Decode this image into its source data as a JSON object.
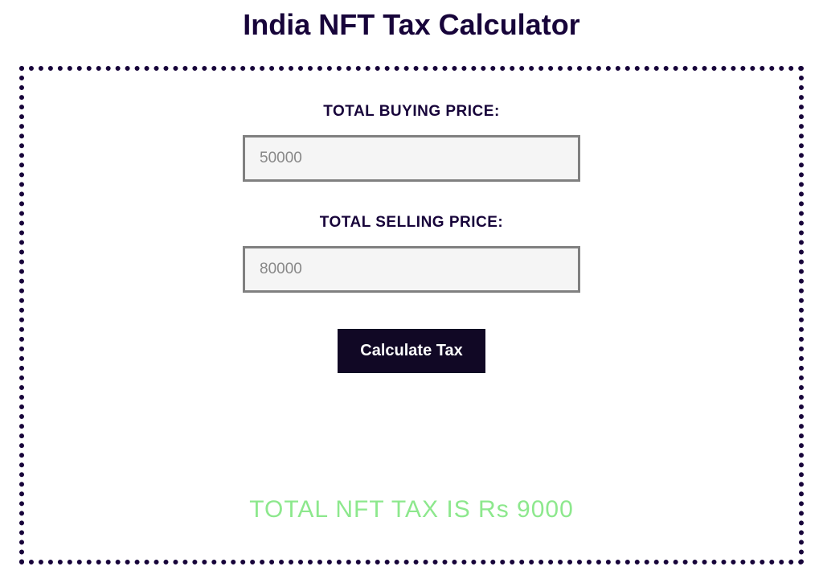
{
  "title": "India NFT Tax Calculator",
  "form": {
    "buying_label": "TOTAL BUYING PRICE:",
    "buying_placeholder": "50000",
    "selling_label": "TOTAL SELLING PRICE:",
    "selling_placeholder": "80000",
    "button_label": "Calculate Tax"
  },
  "result": {
    "text": "TOTAL NFT TAX IS Rs 9000"
  },
  "colors": {
    "title_color": "#17043a",
    "border_color": "#17043a",
    "input_border": "#808080",
    "input_bg": "#f5f5f5",
    "button_bg": "#110825",
    "button_text": "#ffffff",
    "result_color": "#8de88d",
    "page_bg": "#ffffff"
  }
}
